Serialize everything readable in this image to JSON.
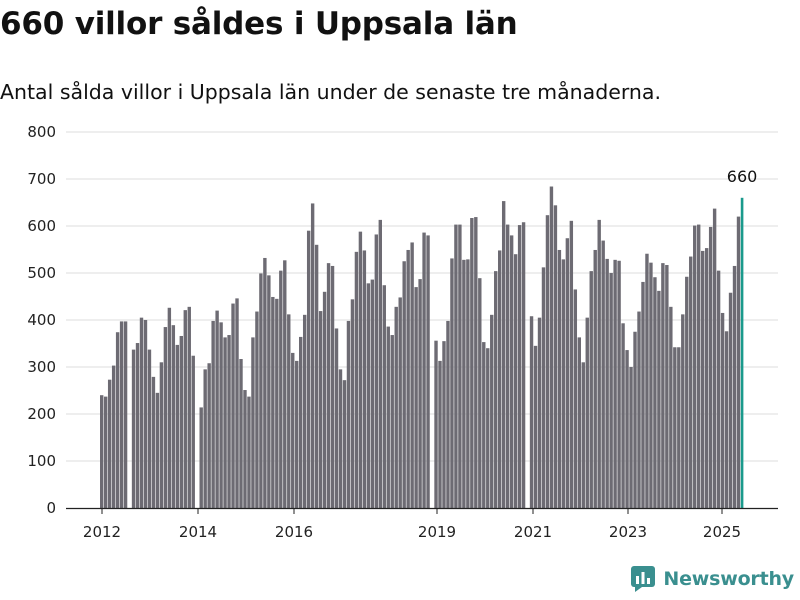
{
  "chart_data": {
    "type": "bar",
    "title": "660 villor såldes i Uppsala län",
    "subtitle": "Antal sålda villor i Uppsala län under de senaste tre månaderna.",
    "ylim": [
      0,
      800
    ],
    "yticks": [
      0,
      100,
      200,
      300,
      400,
      500,
      600,
      700,
      800
    ],
    "xticks": [
      "2012",
      "2014",
      "2016",
      "2019",
      "2021",
      "2023",
      "2025"
    ],
    "grid": true,
    "colors": {
      "bar": "#6d6b73",
      "highlight": "#1a9a8c",
      "grid": "#dddddd"
    },
    "annotation": "660",
    "values": [
      240,
      237,
      273,
      303,
      374,
      397,
      397,
      0,
      337,
      351,
      405,
      400,
      337,
      279,
      245,
      310,
      385,
      426,
      389,
      347,
      366,
      421,
      428,
      324,
      0,
      214,
      295,
      308,
      398,
      420,
      395,
      363,
      368,
      435,
      446,
      317,
      251,
      237,
      363,
      418,
      499,
      532,
      495,
      449,
      445,
      505,
      527,
      412,
      330,
      313,
      364,
      411,
      590,
      648,
      560,
      419,
      460,
      521,
      515,
      382,
      295,
      272,
      398,
      444,
      545,
      588,
      548,
      478,
      486,
      582,
      613,
      474,
      386,
      368,
      428,
      448,
      525,
      549,
      565,
      470,
      487,
      586,
      580,
      0,
      356,
      313,
      355,
      398,
      531,
      603,
      603,
      528,
      529,
      617,
      619,
      489,
      353,
      340,
      411,
      504,
      548,
      653,
      603,
      580,
      540,
      602,
      608,
      0,
      408,
      345,
      405,
      512,
      623,
      684,
      644,
      549,
      529,
      574,
      611,
      465,
      363,
      310,
      405,
      504,
      549,
      613,
      569,
      530,
      500,
      528,
      526,
      393,
      336,
      300,
      375,
      418,
      481,
      541,
      522,
      491,
      462,
      521,
      517,
      428,
      342,
      342,
      412,
      492,
      535,
      601,
      603,
      547,
      553,
      598,
      637,
      505,
      415,
      376,
      458,
      515,
      620,
      660
    ]
  },
  "branding": {
    "name": "Newsworthy",
    "logo_icon": "bar-chart-logo-icon"
  }
}
